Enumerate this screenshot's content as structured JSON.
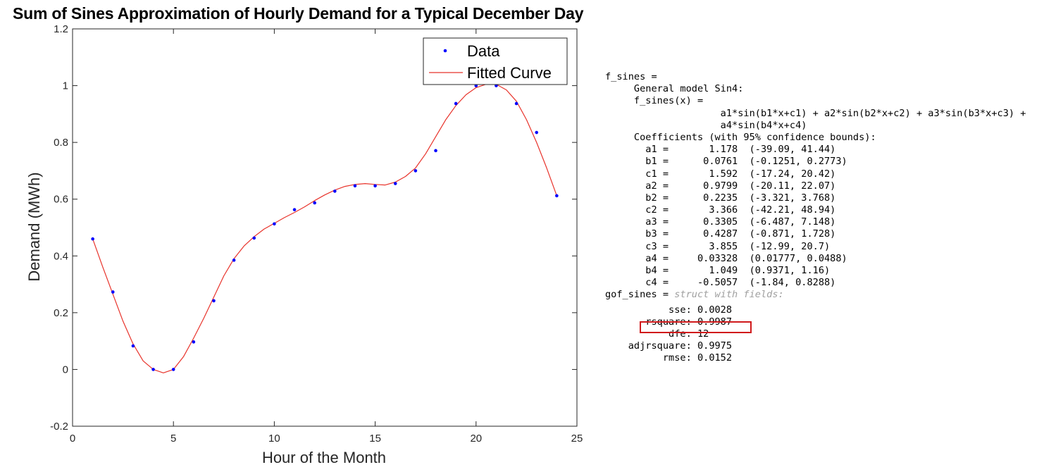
{
  "chart_data": {
    "type": "scatter",
    "title": "Sum of Sines Approximation of Hourly Demand for a Typical December Day",
    "xlabel": "Hour of the Month",
    "ylabel": "Demand (MWh)",
    "xlim": [
      0,
      25
    ],
    "ylim": [
      -0.2,
      1.2
    ],
    "xticks": [
      "0",
      "5",
      "10",
      "15",
      "20",
      "25"
    ],
    "yticks": [
      "-0.2",
      "0",
      "0.2",
      "0.4",
      "0.6",
      "0.8",
      "1",
      "1.2"
    ],
    "grid": false,
    "legend_placement": "top-right",
    "series": [
      {
        "name": "Data",
        "marker": "dot",
        "color": "#0000ff",
        "x": [
          1,
          2,
          3,
          4,
          5,
          6,
          7,
          8,
          9,
          10,
          11,
          12,
          13,
          14,
          15,
          16,
          17,
          18,
          19,
          20,
          21,
          22,
          23,
          24
        ],
        "y": [
          0.46,
          0.273,
          0.083,
          0,
          0,
          0.097,
          0.242,
          0.385,
          0.463,
          0.513,
          0.563,
          0.587,
          0.628,
          0.647,
          0.647,
          0.655,
          0.7,
          0.771,
          0.937,
          1.0,
          1.0,
          0.937,
          0.835,
          0.612
        ]
      },
      {
        "name": "Fitted Curve",
        "line": "solid",
        "color": "#e8332b",
        "x": [
          1,
          1.5,
          2,
          2.5,
          3,
          3.5,
          4,
          4.5,
          5,
          5.5,
          6,
          6.5,
          7,
          7.5,
          8,
          8.5,
          9,
          9.5,
          10,
          10.5,
          11,
          11.5,
          12,
          12.5,
          13,
          13.5,
          14,
          14.5,
          15,
          15.5,
          16,
          16.5,
          17,
          17.5,
          18,
          18.5,
          19,
          19.5,
          20,
          20.5,
          21,
          21.5,
          22,
          22.5,
          23,
          23.5,
          24
        ],
        "y": [
          0.46,
          0.36,
          0.265,
          0.17,
          0.09,
          0.03,
          0.0,
          -0.012,
          0.0,
          0.045,
          0.11,
          0.18,
          0.255,
          0.33,
          0.39,
          0.435,
          0.468,
          0.495,
          0.515,
          0.535,
          0.553,
          0.573,
          0.595,
          0.615,
          0.632,
          0.645,
          0.652,
          0.655,
          0.652,
          0.65,
          0.66,
          0.68,
          0.71,
          0.76,
          0.82,
          0.88,
          0.93,
          0.968,
          0.993,
          1.005,
          1.005,
          0.985,
          0.945,
          0.88,
          0.8,
          0.71,
          0.612
        ]
      }
    ]
  },
  "console": {
    "lines": [
      "f_sines =",
      "     General model Sin4:",
      "     f_sines(x) =",
      "                    a1*sin(b1*x+c1) + a2*sin(b2*x+c2) + a3*sin(b3*x+c3) +",
      "                    a4*sin(b4*x+c4)",
      "     Coefficients (with 95% confidence bounds):",
      "       a1 =       1.178  (-39.09, 41.44)",
      "       b1 =      0.0761  (-0.1251, 0.2773)",
      "       c1 =       1.592  (-17.24, 20.42)",
      "       a2 =      0.9799  (-20.11, 22.07)",
      "       b2 =      0.2235  (-3.321, 3.768)",
      "       c2 =       3.366  (-42.21, 48.94)",
      "       a3 =      0.3305  (-6.487, 7.148)",
      "       b3 =      0.4287  (-0.871, 1.728)",
      "       c3 =       3.855  (-12.99, 20.7)",
      "       a4 =     0.03328  (0.01777, 0.0488)",
      "       b4 =       1.049  (0.9371, 1.16)",
      "       c4 =     -0.5057  (-1.84, 0.8288)"
    ],
    "gof_prefix": "gof_sines = ",
    "gof_struct_note": "struct with fields:",
    "gof_lines": [
      "",
      "           sse: 0.0028",
      "       rsquare: 0.9987",
      "           dfe: 12",
      "    adjrsquare: 0.9975",
      "          rmse: 0.0152"
    ],
    "highlight_color": "#d0191b"
  }
}
